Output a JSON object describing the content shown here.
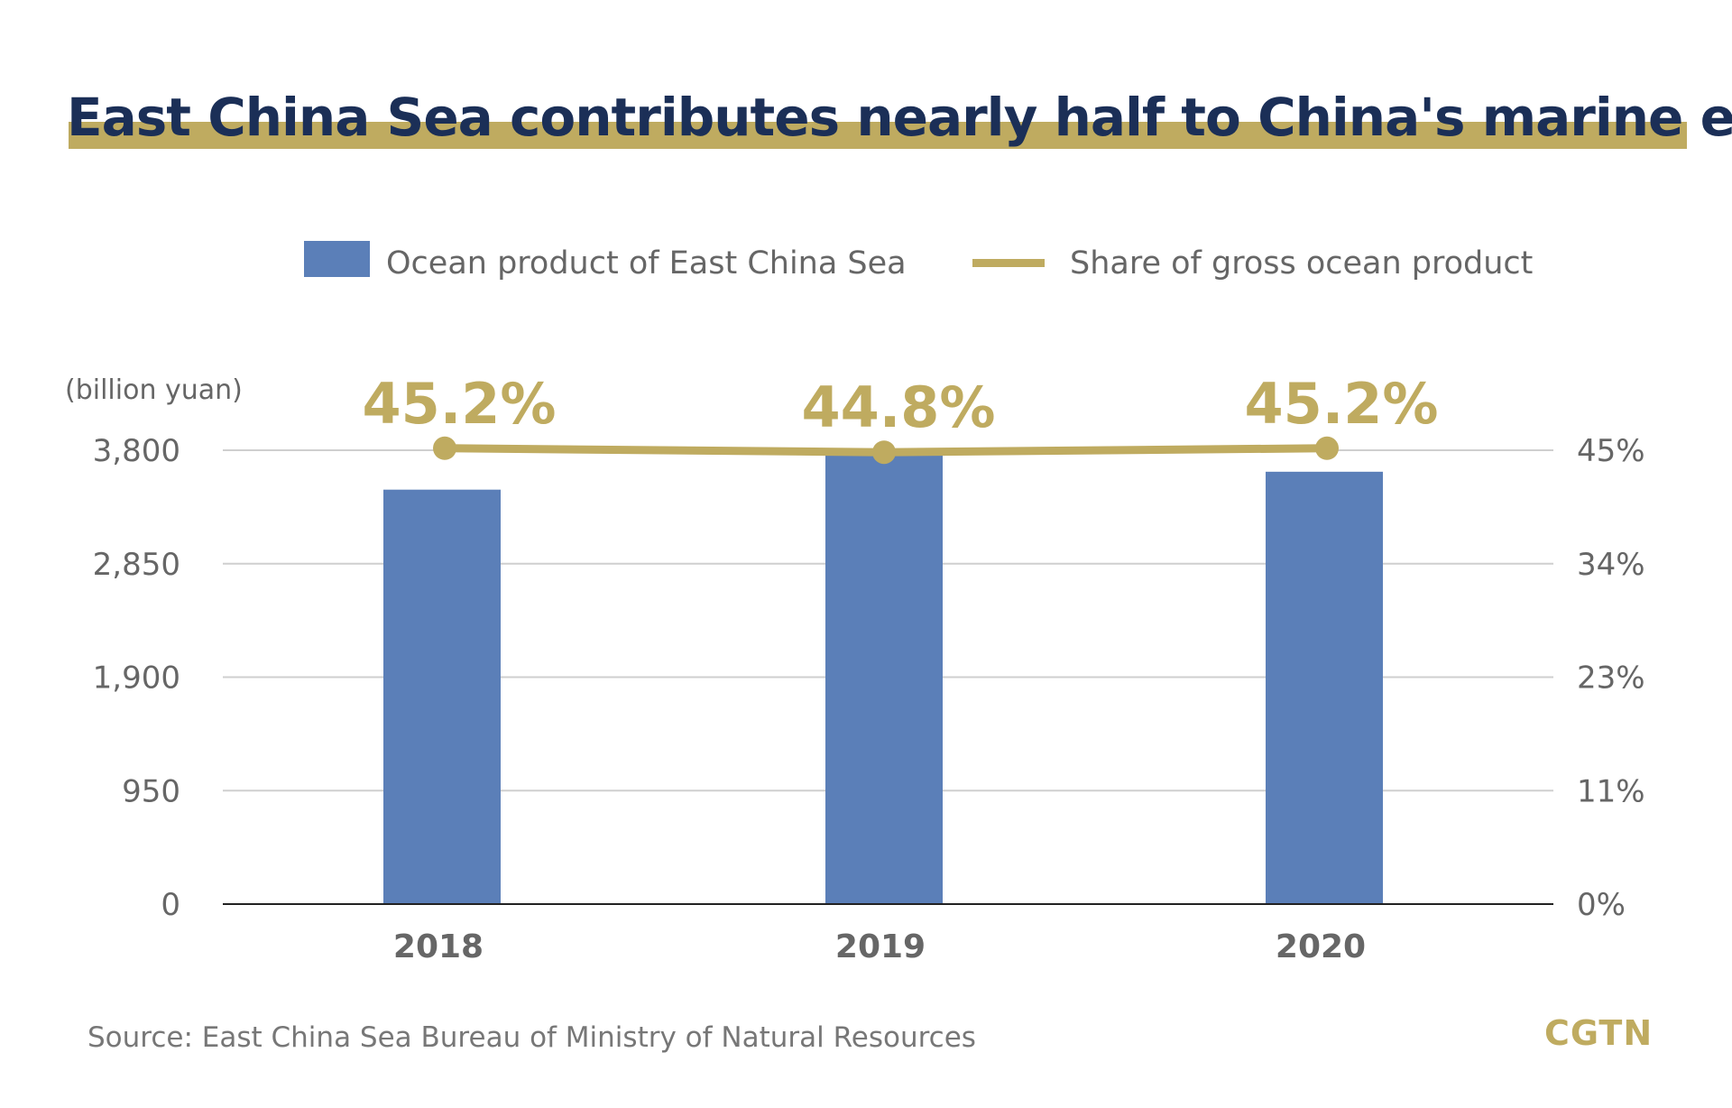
{
  "chart_data": {
    "type": "bar",
    "title": "East China Sea contributes nearly half to China's marine economy",
    "ylabel": "(billion yuan)",
    "categories": [
      "2018",
      "2019",
      "2020"
    ],
    "series": [
      {
        "name": "Ocean product of East China Sea",
        "type": "bar",
        "axis": "left",
        "values": [
          3470,
          3790,
          3620
        ]
      },
      {
        "name": "Share of gross ocean product",
        "type": "line",
        "axis": "right",
        "values": [
          45.2,
          44.8,
          45.2
        ],
        "labels": [
          "45.2%",
          "44.8%",
          "45.2%"
        ]
      }
    ],
    "ylim": [
      0,
      3800
    ],
    "y2lim": [
      0,
      45
    ],
    "yticks": [
      "0",
      "950",
      "1,900",
      "2,850",
      "3,800"
    ],
    "y2ticks": [
      "0%",
      "11%",
      "23%",
      "34%",
      "45%"
    ],
    "grid": true,
    "legend": "top-center",
    "colors": {
      "bar": "#5b7fb8",
      "line": "#bfab60",
      "title": "#1b2f57",
      "underline": "#bfab60"
    },
    "source": "Source: East China Sea Bureau of Ministry of Natural Resources",
    "brand": "CGTN"
  }
}
